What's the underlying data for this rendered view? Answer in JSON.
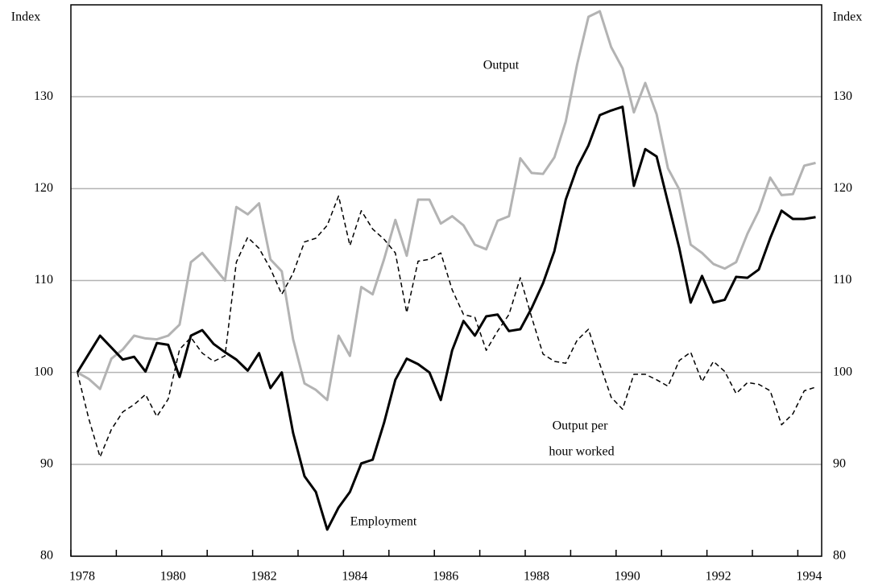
{
  "chart_data": {
    "type": "line",
    "y_label": "Index",
    "categories": [
      "1978",
      null,
      null,
      null,
      null,
      null,
      null,
      null,
      "1980",
      null,
      null,
      null,
      null,
      null,
      null,
      null,
      "1982",
      null,
      null,
      null,
      null,
      null,
      null,
      null,
      "1984",
      null,
      null,
      null,
      null,
      null,
      null,
      null,
      "1986",
      null,
      null,
      null,
      null,
      null,
      null,
      null,
      "1988",
      null,
      null,
      null,
      null,
      null,
      null,
      null,
      "1990",
      null,
      null,
      null,
      null,
      null,
      null,
      null,
      "1992",
      null,
      null,
      null,
      null,
      null,
      null,
      null,
      "1994",
      null
    ],
    "series": [
      {
        "name": "Output",
        "color": "#b3b3b3",
        "dashed": false,
        "width": 3,
        "values": [
          100,
          99.3,
          98.2,
          101.5,
          102.5,
          104,
          103.7,
          103.6,
          104,
          105.2,
          112,
          113,
          111.5,
          110,
          118,
          117.2,
          118.4,
          112.3,
          111,
          103.6,
          98.8,
          98.1,
          97,
          104,
          101.8,
          109.3,
          108.5,
          112.3,
          116.6,
          112.7,
          118.8,
          118.8,
          116.2,
          117,
          116,
          113.9,
          113.4,
          116.5,
          117,
          123.3,
          121.7,
          121.6,
          123.4,
          127.3,
          133.5,
          138.7,
          139.3,
          135.4,
          133.1,
          128.3,
          131.5,
          128.1,
          122.2,
          119.9,
          113.9,
          113,
          111.8,
          111.3,
          112,
          115.1,
          117.6,
          121.2,
          119.3,
          119.4,
          122.5,
          122.8
        ]
      },
      {
        "name": "Employment",
        "color": "#000000",
        "dashed": false,
        "width": 3,
        "values": [
          100,
          102,
          104,
          102.7,
          101.4,
          101.7,
          100.1,
          103.2,
          103,
          99.5,
          104,
          104.6,
          103.1,
          102.2,
          101.4,
          100.2,
          102.1,
          98.3,
          100,
          93.4,
          88.7,
          87,
          82.9,
          85.3,
          87,
          90.1,
          90.5,
          94.5,
          99.2,
          101.5,
          100.9,
          100,
          97,
          102.4,
          105.6,
          104,
          106.1,
          106.3,
          104.5,
          104.7,
          107,
          109.7,
          113.2,
          118.8,
          122.3,
          124.7,
          128,
          128.5,
          128.9,
          120.3,
          124.3,
          123.5,
          118.5,
          113.5,
          107.6,
          110.5,
          107.6,
          107.9,
          110.4,
          110.3,
          111.2,
          114.6,
          117.6,
          116.7,
          116.7,
          116.9
        ]
      },
      {
        "name": "Output per hour worked",
        "color": "#000000",
        "dashed": true,
        "width": 1.5,
        "values": [
          100,
          95,
          90.8,
          93.8,
          95.7,
          96.5,
          97.6,
          95.2,
          97.1,
          102.5,
          103.8,
          102.1,
          101.2,
          101.8,
          112,
          114.7,
          113.5,
          111.3,
          108.5,
          110.8,
          114.2,
          114.6,
          116,
          119.2,
          113.8,
          117.6,
          115.6,
          114.5,
          113,
          106.5,
          112.1,
          112.3,
          113,
          109,
          106.3,
          106,
          102.4,
          104.5,
          106.3,
          110.3,
          106,
          102,
          101.2,
          101,
          103.5,
          104.7,
          100.9,
          97.3,
          96,
          99.8,
          99.8,
          99.2,
          98.5,
          101.3,
          102.2,
          99,
          101.2,
          100.1,
          97.7,
          98.9,
          98.7,
          98,
          94.3,
          95.5,
          98,
          98.4
        ]
      }
    ],
    "annotations": [
      "Output",
      "Output per",
      "hour worked",
      "Employment"
    ],
    "ylim": [
      80,
      140
    ],
    "yticks": [
      80,
      90,
      100,
      110,
      120,
      130
    ],
    "grid": true
  }
}
